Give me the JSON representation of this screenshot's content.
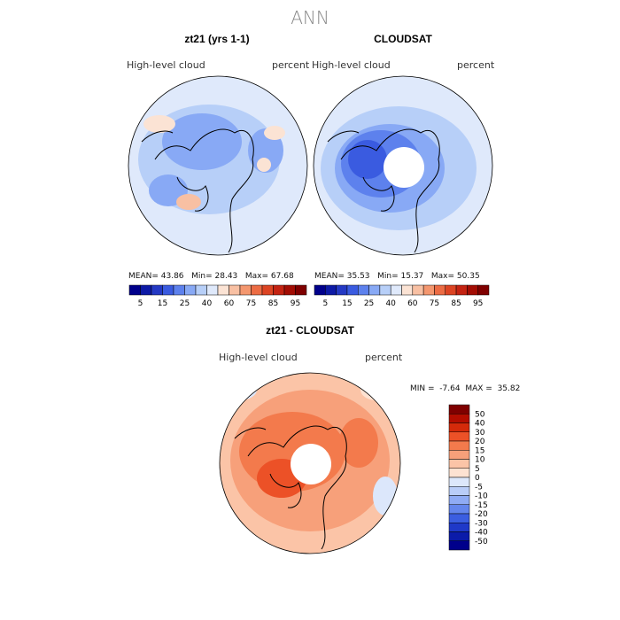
{
  "title": "ANN",
  "panels": [
    {
      "title": "zt21 (yrs 1-1)",
      "left_label": "High-level cloud",
      "right_label": "percent",
      "stats": {
        "mean_label": "MEAN=",
        "mean": "43.86",
        "min_label": "Min=",
        "min": "28.43",
        "max_label": "Max=",
        "max": "67.68"
      }
    },
    {
      "title": "CLOUDSAT",
      "left_label": "High-level cloud",
      "right_label": "percent",
      "stats": {
        "mean_label": "MEAN=",
        "mean": "35.53",
        "min_label": "Min=",
        "min": "15.37",
        "max_label": "Max=",
        "max": "50.35"
      }
    },
    {
      "title": "zt21 - CLOUDSAT",
      "left_label": "High-level cloud",
      "right_label": "percent",
      "stats": {
        "min_label": "MIN =",
        "min": "-7.64",
        "max_label": "MAX =",
        "max": "35.82"
      }
    }
  ],
  "abs_colorbar": {
    "colors": [
      "#00008b",
      "#0d1aa6",
      "#2439c4",
      "#3a5be0",
      "#5d81ed",
      "#88a9f5",
      "#b7cff8",
      "#dfe9fb",
      "#fbe3d4",
      "#f8c0a3",
      "#f4976f",
      "#ec6c44",
      "#dc4423",
      "#c42312",
      "#a30d04",
      "#7f0000"
    ],
    "tick_labels": [
      "5",
      "15",
      "25",
      "40",
      "60",
      "75",
      "85",
      "95"
    ]
  },
  "diff_colorbar": {
    "colors": [
      "#7f0000",
      "#b30d00",
      "#d42a0a",
      "#ec5127",
      "#f37a4c",
      "#f7a07a",
      "#fbc4a7",
      "#fde2d2",
      "#dce7fb",
      "#b9cdf8",
      "#8fabf4",
      "#6486ec",
      "#3b5ee0",
      "#1f39c8",
      "#0b1ba9",
      "#00008b"
    ],
    "tick_labels": [
      "50",
      "40",
      "30",
      "20",
      "15",
      "10",
      "5",
      "0",
      "-5",
      "-10",
      "-15",
      "-20",
      "-30",
      "-40",
      "-50"
    ]
  }
}
